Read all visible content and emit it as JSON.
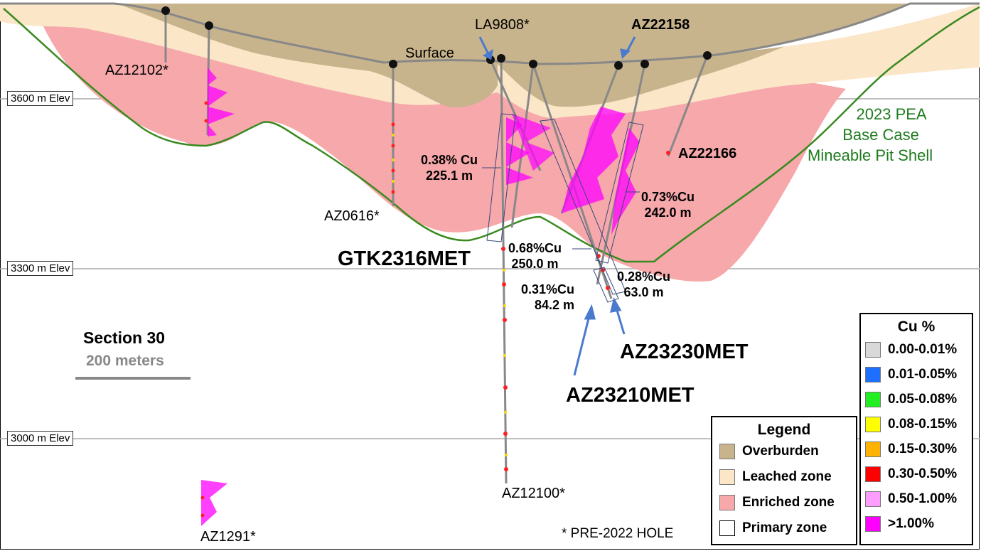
{
  "elevations": [
    "3600 m Elev",
    "3300 m Elev",
    "3000 m Elev"
  ],
  "holes": {
    "az12102": "AZ12102*",
    "az0616": "AZ0616*",
    "la9808": "LA9808*",
    "az22158": "AZ22158",
    "az22166": "AZ22166",
    "az12100": "AZ12100*",
    "az1291": "AZ1291*",
    "gtk2316met": "GTK2316MET",
    "az23230met": "AZ23230MET",
    "az23210met": "AZ23210MET"
  },
  "surface_label": "Surface",
  "intercepts": [
    {
      "grade": "0.38% Cu",
      "length": "225.1 m"
    },
    {
      "grade": "0.73%Cu",
      "length": "242.0 m"
    },
    {
      "grade": "0.68%Cu",
      "length": "250.0 m"
    },
    {
      "grade": "0.28%Cu",
      "length": "63.0 m"
    },
    {
      "grade": "0.31%Cu",
      "length": "84.2 m"
    }
  ],
  "pit_shell_label": [
    "2023 PEA",
    "Base Case",
    "Mineable Pit Shell"
  ],
  "section": {
    "title": "Section 30",
    "scale": "200 meters"
  },
  "footnote": "* PRE-2022 HOLE",
  "legend": {
    "title": "Legend",
    "items": [
      {
        "label": "Overburden",
        "color": "#c8b48c"
      },
      {
        "label": "Leached zone",
        "color": "#fbe6c8"
      },
      {
        "label": "Enriched zone",
        "color": "#f6a8aa"
      },
      {
        "label": "Primary zone",
        "color": "#ffffff"
      }
    ]
  },
  "cu_legend": {
    "title": "Cu %",
    "items": [
      {
        "label": "0.00-0.01%",
        "color": "#d9d9d9"
      },
      {
        "label": "0.01-0.05%",
        "color": "#1f6fff"
      },
      {
        "label": "0.05-0.08%",
        "color": "#22ee22"
      },
      {
        "label": "0.08-0.15%",
        "color": "#ffff00"
      },
      {
        "label": "0.15-0.30%",
        "color": "#ffb300"
      },
      {
        "label": "0.30-0.50%",
        "color": "#ff0000"
      },
      {
        "label": "0.50-1.00%",
        "color": "#ff9cff"
      },
      {
        "label": ">1.00%",
        "color": "#ff00ff"
      }
    ]
  }
}
